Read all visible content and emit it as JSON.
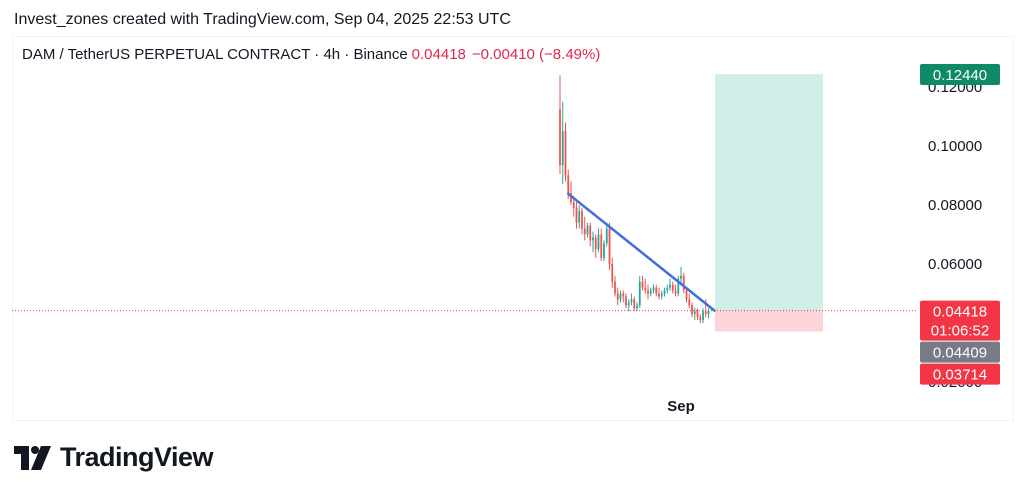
{
  "attribution": "Invest_zones created with TradingView.com, Sep 04, 2025 22:53 UTC",
  "header": {
    "symbol": "DAM / TetherUS PERPETUAL CONTRACT · 4h · Binance",
    "price": "0.04418",
    "change": "−0.00410 (−8.49%)"
  },
  "brand": {
    "name": "TradingView"
  },
  "colors": {
    "up": "#26a69a",
    "down": "#ef5350",
    "trendline": "#3f6fd8",
    "target_zone": "#d1efe9",
    "stop_zone": "#fbd5d9",
    "target_tag": "#0f8a66",
    "price_tag": "#f23645",
    "grey_tag": "#787b86"
  },
  "chart_data": {
    "type": "candlestick",
    "y_range": [
      0.015,
      0.13
    ],
    "y_ticks": [
      "0.12000",
      "0.10000",
      "0.08000",
      "0.06000",
      "0.02000"
    ],
    "x_ticks": [
      "Sep"
    ],
    "candles": [
      [
        0.1125,
        0.124,
        0.0905,
        0.0935
      ],
      [
        0.0935,
        0.115,
        0.087,
        0.105
      ],
      [
        0.105,
        0.108,
        0.088,
        0.09
      ],
      [
        0.09,
        0.092,
        0.082,
        0.084
      ],
      [
        0.084,
        0.088,
        0.08,
        0.081
      ],
      [
        0.081,
        0.083,
        0.076,
        0.079
      ],
      [
        0.079,
        0.081,
        0.072,
        0.074
      ],
      [
        0.074,
        0.08,
        0.072,
        0.078
      ],
      [
        0.078,
        0.079,
        0.07,
        0.072
      ],
      [
        0.072,
        0.076,
        0.068,
        0.07
      ],
      [
        0.07,
        0.074,
        0.069,
        0.073
      ],
      [
        0.073,
        0.074,
        0.066,
        0.068
      ],
      [
        0.068,
        0.071,
        0.064,
        0.069
      ],
      [
        0.069,
        0.07,
        0.062,
        0.065
      ],
      [
        0.065,
        0.072,
        0.064,
        0.07
      ],
      [
        0.07,
        0.072,
        0.061,
        0.062
      ],
      [
        0.062,
        0.068,
        0.061,
        0.067
      ],
      [
        0.067,
        0.074,
        0.066,
        0.072
      ],
      [
        0.072,
        0.074,
        0.058,
        0.06
      ],
      [
        0.06,
        0.062,
        0.052,
        0.054
      ],
      [
        0.054,
        0.056,
        0.049,
        0.05
      ],
      [
        0.05,
        0.052,
        0.046,
        0.048
      ],
      [
        0.048,
        0.051,
        0.047,
        0.05
      ],
      [
        0.05,
        0.051,
        0.047,
        0.049
      ],
      [
        0.049,
        0.05,
        0.045,
        0.046
      ],
      [
        0.046,
        0.048,
        0.044,
        0.047
      ],
      [
        0.047,
        0.05,
        0.046,
        0.048
      ],
      [
        0.048,
        0.049,
        0.044,
        0.045
      ],
      [
        0.045,
        0.047,
        0.044,
        0.046
      ],
      [
        0.046,
        0.056,
        0.045,
        0.054
      ],
      [
        0.054,
        0.056,
        0.051,
        0.052
      ],
      [
        0.052,
        0.055,
        0.05,
        0.051
      ],
      [
        0.051,
        0.053,
        0.048,
        0.05
      ],
      [
        0.05,
        0.052,
        0.049,
        0.051
      ],
      [
        0.051,
        0.053,
        0.05,
        0.052
      ],
      [
        0.052,
        0.053,
        0.049,
        0.05
      ],
      [
        0.05,
        0.052,
        0.048,
        0.049
      ],
      [
        0.049,
        0.051,
        0.048,
        0.05
      ],
      [
        0.05,
        0.052,
        0.049,
        0.051
      ],
      [
        0.051,
        0.053,
        0.05,
        0.052
      ],
      [
        0.052,
        0.055,
        0.051,
        0.053
      ],
      [
        0.053,
        0.054,
        0.05,
        0.051
      ],
      [
        0.051,
        0.053,
        0.049,
        0.05
      ],
      [
        0.05,
        0.056,
        0.049,
        0.055
      ],
      [
        0.055,
        0.059,
        0.053,
        0.056
      ],
      [
        0.056,
        0.057,
        0.05,
        0.051
      ],
      [
        0.051,
        0.052,
        0.047,
        0.048
      ],
      [
        0.048,
        0.05,
        0.045,
        0.046
      ],
      [
        0.046,
        0.047,
        0.042,
        0.043
      ],
      [
        0.043,
        0.045,
        0.041,
        0.044
      ],
      [
        0.044,
        0.045,
        0.041,
        0.042
      ],
      [
        0.042,
        0.043,
        0.04,
        0.041
      ],
      [
        0.041,
        0.045,
        0.04,
        0.044
      ],
      [
        0.044,
        0.048,
        0.042,
        0.043
      ],
      [
        0.043,
        0.045,
        0.0415,
        0.0442
      ]
    ],
    "trendline": {
      "from": [
        3,
        0.0838
      ],
      "to": [
        54,
        0.0442
      ]
    },
    "long_position": {
      "entry": 0.04418,
      "target": 0.1244,
      "stop": 0.03714
    },
    "last_price": 0.04418,
    "price_tags": [
      {
        "value": 0.1244,
        "label": "0.12440",
        "color": "#0f8a66"
      },
      {
        "value": 0.04418,
        "label": "0.04418",
        "sub": "01:06:52",
        "color": "#f23645"
      },
      {
        "value": 0.04409,
        "label": "0.04409",
        "color": "#787b86"
      },
      {
        "value": 0.03714,
        "label": "0.03714",
        "color": "#f23645"
      }
    ]
  }
}
